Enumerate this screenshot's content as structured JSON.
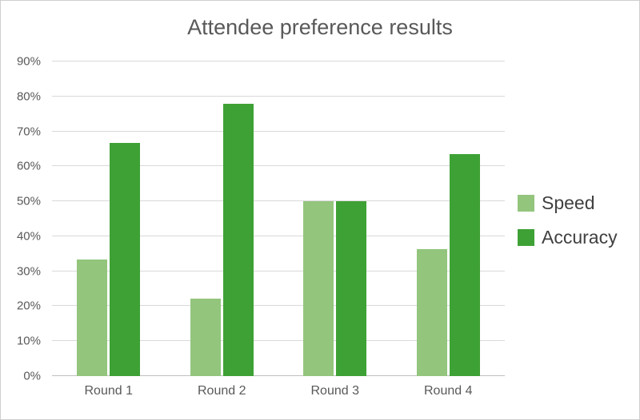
{
  "chart_data": {
    "type": "bar",
    "title": "Attendee preference results",
    "categories": [
      "Round 1",
      "Round 2",
      "Round 3",
      "Round 4"
    ],
    "series": [
      {
        "name": "Speed",
        "color": "#93c57d",
        "values": [
          33.3,
          22.2,
          50.0,
          36.4
        ]
      },
      {
        "name": "Accuracy",
        "color": "#3ea135",
        "values": [
          66.7,
          77.8,
          50.0,
          63.6
        ]
      }
    ],
    "ylim": [
      0,
      90
    ],
    "ytick_step": 10,
    "ytick_labels": [
      "0%",
      "10%",
      "20%",
      "30%",
      "40%",
      "50%",
      "60%",
      "70%",
      "80%",
      "90%"
    ],
    "grid": "horizontal",
    "legend_position": "right",
    "colors": {
      "title_text": "#595959",
      "axis_text": "#595959",
      "legend_text": "#404040",
      "gridline": "#d9d9d9",
      "baseline": "#bfbfbf",
      "background": "#ffffff"
    }
  }
}
